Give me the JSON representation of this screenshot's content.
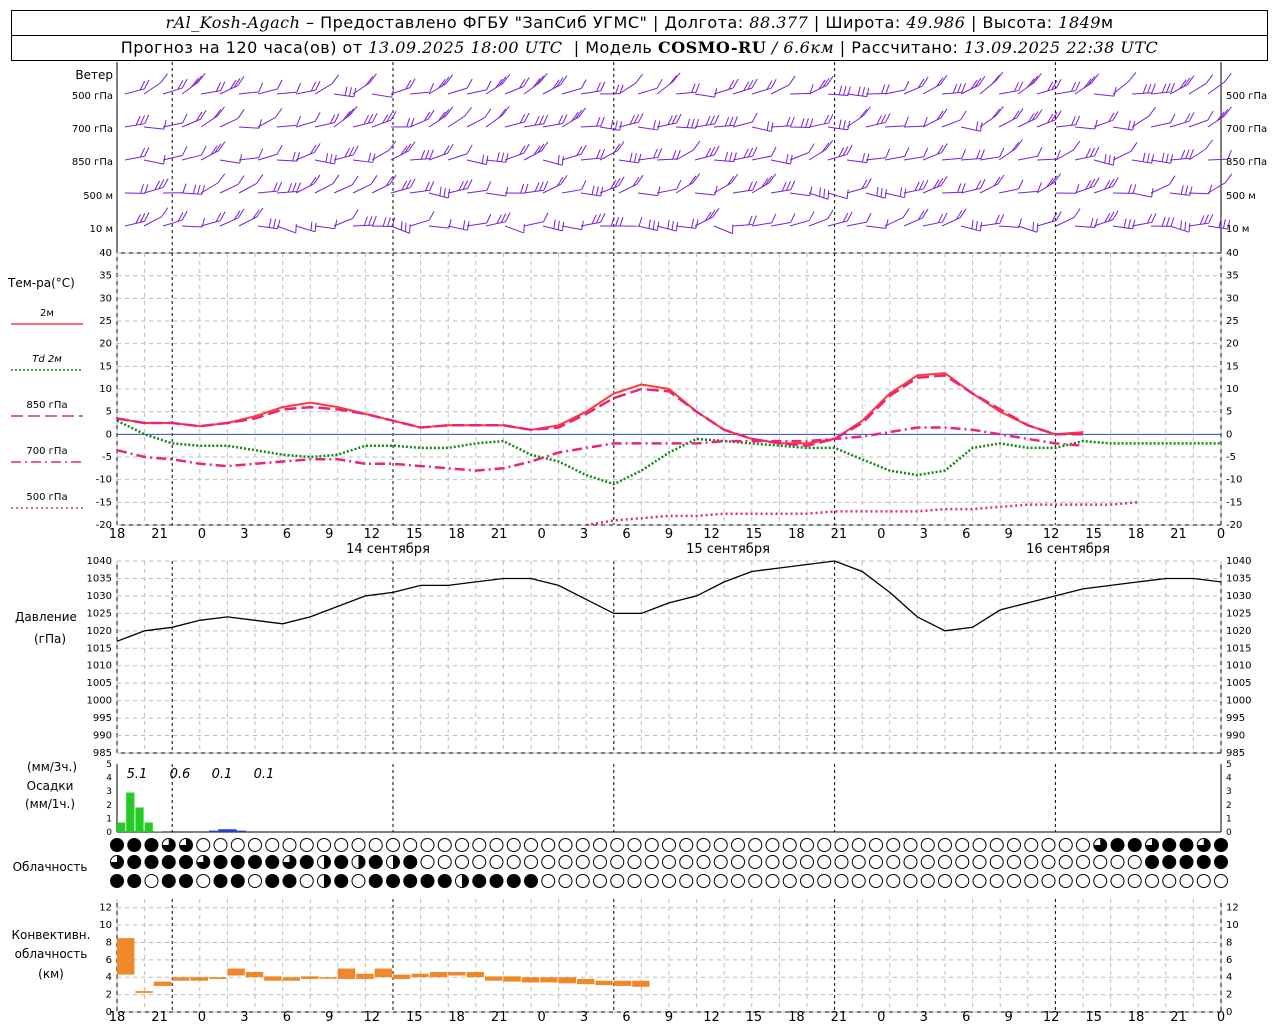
{
  "header": {
    "station": "rAl_Kosh-Agach",
    "provider": "Предоставлено ФГБУ \"ЗапСиб УГМС\"",
    "lon_label": "Долгота:",
    "lon": "88.377",
    "lat_label": "Широта:",
    "lat": "49.986",
    "alt_label": "Высота:",
    "alt": "1849",
    "alt_unit": "м",
    "forecast_label": "Прогноз на 120 часа(ов) от",
    "forecast_from": "13.09.2025 18:00 UTC",
    "model_label": "Модель",
    "model": "COSMO-RU",
    "resolution": "/ 6.6км",
    "computed_label": "Рассчитано:",
    "computed": "13.09.2025 22:38 UTC"
  },
  "colors": {
    "wind": "#7a1fd6",
    "t2m": "#ff3b30",
    "td2m": "#118811",
    "t850": "#e8247f",
    "t700": "#e8247f",
    "t500": "#e8247f",
    "pressure": "#000000",
    "precip3h": "#22cc22",
    "precip1h": "#1a3fd6",
    "convective": "#f0882a"
  },
  "wind": {
    "title": "Ветер",
    "levels": [
      "500 гПа",
      "700 гПа",
      "850 гПа",
      "500 м",
      "10  м"
    ]
  },
  "temperature": {
    "title": "Тем-ра(°С)",
    "legend": [
      {
        "label": "2м",
        "style": "solid"
      },
      {
        "label": "Td  2м",
        "style": "dotted"
      },
      {
        "label": "850 гПа",
        "style": "dashed-long"
      },
      {
        "label": "700 гПа",
        "style": "dashdot"
      },
      {
        "label": "500 гПа",
        "style": "dotted"
      }
    ],
    "yticks": [
      40,
      35,
      30,
      25,
      20,
      15,
      10,
      5,
      0,
      -5,
      -10,
      -15,
      -20
    ]
  },
  "time_axis": {
    "hour_labels": [
      "18",
      "21",
      "0",
      "3",
      "6",
      "9",
      "12",
      "15",
      "18",
      "21",
      "0",
      "3",
      "6",
      "9",
      "12",
      "15",
      "18",
      "21",
      "0",
      "3",
      "6",
      "9",
      "12",
      "15",
      "18",
      "21",
      "0"
    ],
    "days": [
      "14 сентября",
      "15 сентября",
      "16 сентября"
    ]
  },
  "pressure": {
    "title": "Давление",
    "unit": "(гПа)",
    "yticks": [
      1040,
      1035,
      1030,
      1025,
      1020,
      1015,
      1010,
      1005,
      1000,
      995,
      990,
      985
    ]
  },
  "precip": {
    "unit3": "(мм/3ч.)",
    "title": "Осадки",
    "unit1": "(мм/1ч.)",
    "yticks": [
      5,
      4,
      3,
      2,
      1,
      0
    ],
    "totals": [
      "5.1",
      "0.6",
      "0.1",
      "0.1"
    ]
  },
  "clouds": {
    "title": "Облачность"
  },
  "convective": {
    "title1": "Конвективн.",
    "title2": "облачность",
    "unit": "(км)",
    "yticks": [
      12,
      10,
      8,
      6,
      4,
      2,
      0
    ]
  },
  "chart_data": [
    {
      "type": "line",
      "title": "Тем-ра(°С)",
      "x_hours": [
        0,
        3,
        6,
        9,
        12,
        15,
        18,
        21,
        24,
        27,
        30,
        33,
        36,
        39,
        42,
        45,
        48,
        51,
        54,
        57,
        60,
        63,
        66,
        69,
        72,
        75,
        78,
        81,
        84,
        87,
        90,
        93,
        96,
        99,
        102,
        105,
        108,
        111,
        114,
        117,
        120
      ],
      "ylim": [
        -20,
        40
      ],
      "series": [
        {
          "name": "2м",
          "values": [
            3.5,
            2.5,
            2.5,
            1.8,
            2.5,
            4,
            6,
            7,
            6,
            4.5,
            3,
            1.5,
            2,
            2,
            2,
            1,
            2,
            5,
            9,
            11,
            10,
            5,
            1,
            -1,
            -2,
            -2,
            -1,
            3,
            9,
            13,
            13.5,
            9,
            5,
            2,
            0,
            0.5,
            null,
            null,
            null,
            null,
            null
          ]
        },
        {
          "name": "Td  2м",
          "values": [
            3,
            0,
            -2,
            -2.5,
            -2.5,
            -3.5,
            -4.5,
            -5,
            -4.5,
            -2.5,
            -2.5,
            -3,
            -3,
            -2,
            -1.5,
            -4.5,
            -6,
            -9,
            -11,
            -8,
            -4,
            -1,
            -1.5,
            -2,
            -2.5,
            -3,
            -3,
            -5.5,
            -8,
            -9,
            -8,
            -3,
            -2,
            -3,
            -3,
            -1.5,
            -2,
            -2,
            -2,
            -2,
            -2
          ]
        },
        {
          "name": "850 гПа",
          "values": [
            3.5,
            2.5,
            2.5,
            1.8,
            2.5,
            3.5,
            5.5,
            6,
            5.5,
            4.5,
            3,
            1.5,
            2,
            2,
            2,
            1,
            1.5,
            4.5,
            8,
            10,
            9.5,
            5,
            1,
            -1,
            -2,
            -2.5,
            -1,
            2.5,
            8.5,
            12.5,
            13,
            9,
            5.5,
            2,
            0,
            0,
            null,
            null,
            null,
            null,
            null
          ]
        },
        {
          "name": "700 гПа",
          "values": [
            -3.5,
            -5,
            -5.5,
            -6.5,
            -7,
            -6.5,
            -6,
            -5.5,
            -5.5,
            -6.5,
            -6.5,
            -7,
            -7.5,
            -8,
            -7.5,
            -6,
            -4,
            -3,
            -2,
            -2,
            -2,
            -2,
            -1.5,
            -1.5,
            -1.5,
            -1.5,
            -1,
            -0.5,
            0.5,
            1.5,
            1.5,
            1,
            0,
            -1,
            -2,
            -2.5,
            null,
            null,
            null,
            null,
            null
          ]
        },
        {
          "name": "500 гПа",
          "values": [
            null,
            null,
            null,
            null,
            null,
            null,
            null,
            null,
            null,
            null,
            null,
            null,
            null,
            null,
            null,
            null,
            null,
            -20,
            -19,
            -18.5,
            -18,
            -18,
            -17.5,
            -17.5,
            -17.5,
            -17.5,
            -17,
            -17,
            -17,
            -17,
            -16.5,
            -16.5,
            -16,
            -15.5,
            -15.5,
            -15.5,
            -15.5,
            -15,
            null,
            null,
            null
          ]
        }
      ]
    },
    {
      "type": "line",
      "title": "Давление",
      "x_hours": [
        0,
        3,
        6,
        9,
        12,
        15,
        18,
        21,
        24,
        27,
        30,
        33,
        36,
        39,
        42,
        45,
        48,
        51,
        54,
        57,
        60,
        63,
        66,
        69,
        72,
        75,
        78,
        81,
        84,
        87,
        90,
        93,
        96,
        99,
        102,
        105,
        108,
        111,
        114,
        117,
        120
      ],
      "ylim": [
        985,
        1040
      ],
      "series": [
        {
          "name": "Давление",
          "values": [
            1017,
            1020,
            1021,
            1023,
            1024,
            1023,
            1022,
            1024,
            1027,
            1030,
            1031,
            1033,
            1033,
            1034,
            1035,
            1035,
            1033,
            1029,
            1025,
            1025,
            1028,
            1030,
            1034,
            1037,
            1038,
            1039,
            1040,
            1037,
            1031,
            1024,
            1020,
            1021,
            1026,
            1028,
            1030,
            1032,
            1033,
            1034,
            1035,
            1035,
            1034
          ]
        }
      ]
    },
    {
      "type": "bar",
      "title": "Осадки",
      "ylim": [
        0,
        5
      ],
      "series": [
        {
          "name": "(мм/3ч.)",
          "x_hours": [
            0,
            1,
            2,
            3,
            4
          ],
          "values": [
            0.7,
            2.9,
            1.8,
            0.7,
            0.05
          ]
        },
        {
          "name": "(мм/1ч.)",
          "x_hours": [
            10,
            11,
            12,
            13
          ],
          "values": [
            0.1,
            0.2,
            0.2,
            0.1
          ]
        }
      ]
    },
    {
      "type": "bar",
      "title": "Конвективн. облачность",
      "ylim": [
        0,
        12
      ],
      "series": [
        {
          "name": "(км)",
          "x_hours": [
            0,
            2,
            4,
            6,
            8,
            10,
            12,
            14,
            16,
            18,
            20,
            22,
            24,
            26,
            28,
            30,
            32,
            34,
            36,
            38,
            40,
            42,
            44,
            46,
            48,
            50,
            52,
            54,
            56
          ],
          "base": [
            4.3,
            2.2,
            3,
            3.6,
            3.6,
            3.8,
            4.2,
            4,
            3.6,
            3.6,
            3.8,
            4,
            3.8,
            3.8,
            4,
            3.8,
            4,
            4,
            4.2,
            4,
            3.6,
            3.5,
            3.4,
            3.4,
            3.3,
            3.2,
            3.1,
            3,
            2.9
          ],
          "top": [
            8.5,
            2.4,
            3.5,
            4,
            4,
            4,
            5,
            4.6,
            4.1,
            4,
            4.1,
            4,
            5,
            4.4,
            5,
            4.3,
            4.4,
            4.6,
            4.6,
            4.6,
            4.1,
            4.1,
            4,
            4,
            4,
            3.8,
            3.6,
            3.6,
            3.6
          ]
        }
      ]
    }
  ]
}
